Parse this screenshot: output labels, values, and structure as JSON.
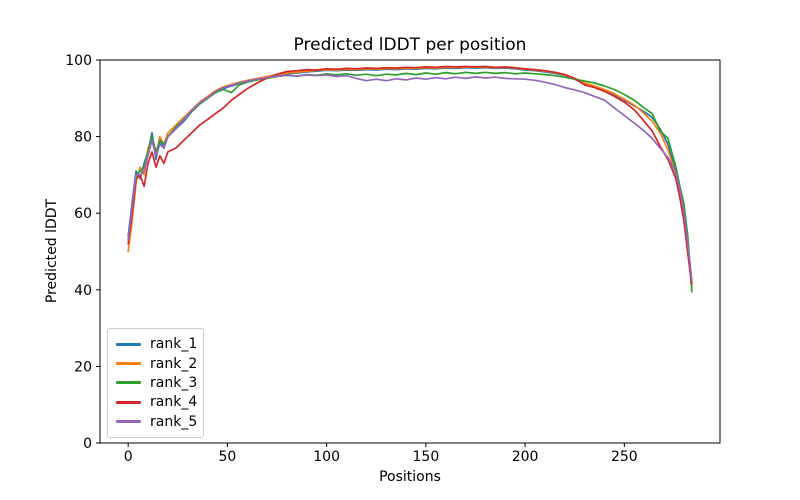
{
  "figure": {
    "background": "#ffffff",
    "spine_color": "#000000",
    "legend_border_color": "#cccccc"
  },
  "chart_data": {
    "type": "line",
    "title": "Predicted lDDT per position",
    "xlabel": "Positions",
    "ylabel": "Predicted lDDT",
    "xlim": [
      -14.2,
      298.2
    ],
    "ylim": [
      0,
      100
    ],
    "xticks": [
      0,
      50,
      100,
      150,
      200,
      250
    ],
    "yticks": [
      0,
      20,
      40,
      60,
      80,
      100
    ],
    "grid": false,
    "legend_position": "lower left",
    "x": [
      0,
      2,
      4,
      6,
      8,
      10,
      12,
      14,
      16,
      18,
      20,
      24,
      28,
      32,
      36,
      40,
      44,
      48,
      52,
      56,
      60,
      65,
      70,
      75,
      80,
      85,
      90,
      95,
      100,
      105,
      110,
      115,
      120,
      125,
      130,
      135,
      140,
      145,
      150,
      155,
      160,
      165,
      170,
      175,
      180,
      185,
      190,
      195,
      200,
      205,
      210,
      215,
      220,
      225,
      230,
      235,
      240,
      245,
      250,
      255,
      260,
      264,
      268,
      272,
      276,
      278,
      280,
      282,
      284
    ],
    "series": [
      {
        "name": "rank_1",
        "color": "#1f77b4",
        "values": [
          54,
          63,
          71,
          69,
          73,
          76,
          81,
          74,
          79,
          77,
          80,
          82,
          84,
          86.5,
          88.5,
          90,
          91.5,
          92.5,
          93.2,
          93.8,
          94.4,
          95.0,
          95.5,
          96.0,
          96.4,
          96.6,
          96.9,
          97.1,
          97.3,
          97.2,
          97.4,
          97.3,
          97.5,
          97.4,
          97.6,
          97.5,
          97.7,
          97.6,
          97.8,
          97.7,
          97.9,
          97.8,
          98.0,
          97.9,
          98.0,
          97.8,
          97.9,
          97.7,
          97.4,
          97.2,
          96.9,
          96.5,
          96.0,
          95.0,
          93.8,
          93.0,
          92.0,
          91.0,
          89.5,
          88.0,
          86.5,
          85.0,
          82.0,
          78.0,
          71.0,
          66.5,
          61.0,
          53.0,
          41.5
        ]
      },
      {
        "name": "rank_2",
        "color": "#ff7f0e",
        "values": [
          50,
          58,
          68,
          72,
          70,
          77,
          79,
          75,
          80,
          78,
          81,
          83,
          85,
          87,
          89,
          90.5,
          92,
          93,
          93.6,
          94.2,
          94.7,
          95.2,
          95.7,
          96.2,
          96.6,
          96.8,
          97.1,
          97.3,
          97.5,
          97.4,
          97.6,
          97.5,
          97.7,
          97.6,
          97.8,
          97.7,
          97.9,
          97.8,
          98.0,
          97.9,
          98.1,
          98.0,
          98.2,
          98.1,
          98.2,
          98.0,
          98.1,
          97.9,
          97.6,
          97.4,
          97.1,
          96.7,
          96.1,
          95.2,
          94.0,
          93.2,
          92.3,
          91.2,
          89.8,
          88.2,
          86.0,
          84.0,
          81.0,
          76.5,
          70.0,
          65.0,
          58.5,
          50.0,
          40.5
        ]
      },
      {
        "name": "rank_3",
        "color": "#2ca02c",
        "values": [
          53,
          61,
          70,
          71,
          72,
          76,
          80,
          76,
          79,
          78,
          80,
          82.5,
          84.5,
          86.5,
          88.5,
          90,
          91.5,
          92.3,
          91.5,
          93.5,
          94.2,
          94.8,
          95.2,
          95.7,
          96.0,
          95.8,
          96.2,
          96.0,
          96.4,
          96.1,
          96.4,
          96.0,
          96.3,
          95.9,
          96.3,
          96.1,
          96.5,
          96.2,
          96.6,
          96.3,
          96.7,
          96.4,
          96.8,
          96.5,
          96.8,
          96.5,
          96.7,
          96.4,
          96.6,
          96.4,
          96.2,
          95.9,
          95.5,
          95.0,
          94.5,
          94.0,
          93.2,
          92.3,
          91.0,
          89.5,
          87.5,
          86.0,
          81.5,
          79.5,
          72.0,
          67.0,
          62.5,
          54.0,
          39.5
        ]
      },
      {
        "name": "rank_4",
        "color": "#d62728",
        "values": [
          52,
          60,
          69,
          70,
          67,
          73,
          76,
          72,
          75,
          73,
          76,
          77,
          79,
          81,
          83,
          84.5,
          86,
          87.5,
          89.5,
          91,
          92.5,
          94.0,
          95.3,
          96.3,
          97.0,
          97.2,
          97.5,
          97.4,
          97.7,
          97.6,
          97.8,
          97.7,
          97.9,
          97.8,
          98.0,
          97.9,
          98.1,
          98.0,
          98.2,
          98.1,
          98.3,
          98.2,
          98.3,
          98.2,
          98.3,
          98.1,
          98.2,
          98.0,
          97.7,
          97.5,
          97.2,
          96.8,
          96.2,
          95.2,
          93.5,
          92.8,
          91.8,
          90.5,
          89.0,
          87.0,
          84.0,
          81.5,
          77.5,
          74.0,
          69.0,
          64.0,
          58.0,
          49.5,
          41.5
        ]
      },
      {
        "name": "rank_5",
        "color": "#9467bd",
        "values": [
          53,
          62,
          70,
          70,
          71,
          75,
          79,
          75,
          78,
          77,
          80,
          82,
          84.5,
          86.8,
          88.8,
          90.2,
          91.8,
          92.8,
          93.4,
          94.0,
          94.5,
          95.0,
          95.4,
          95.8,
          96.0,
          95.8,
          96.1,
          95.9,
          96.1,
          95.7,
          95.9,
          95.2,
          94.6,
          95.0,
          94.6,
          95.1,
          94.8,
          95.3,
          95.0,
          95.4,
          95.1,
          95.5,
          95.2,
          95.6,
          95.3,
          95.5,
          95.2,
          95.1,
          95.0,
          94.7,
          94.2,
          93.6,
          92.8,
          92.2,
          91.5,
          90.5,
          89.5,
          87.5,
          85.5,
          83.5,
          81.5,
          79.5,
          77.0,
          74.5,
          70.5,
          66.0,
          60.5,
          52.0,
          42.5
        ]
      }
    ]
  }
}
